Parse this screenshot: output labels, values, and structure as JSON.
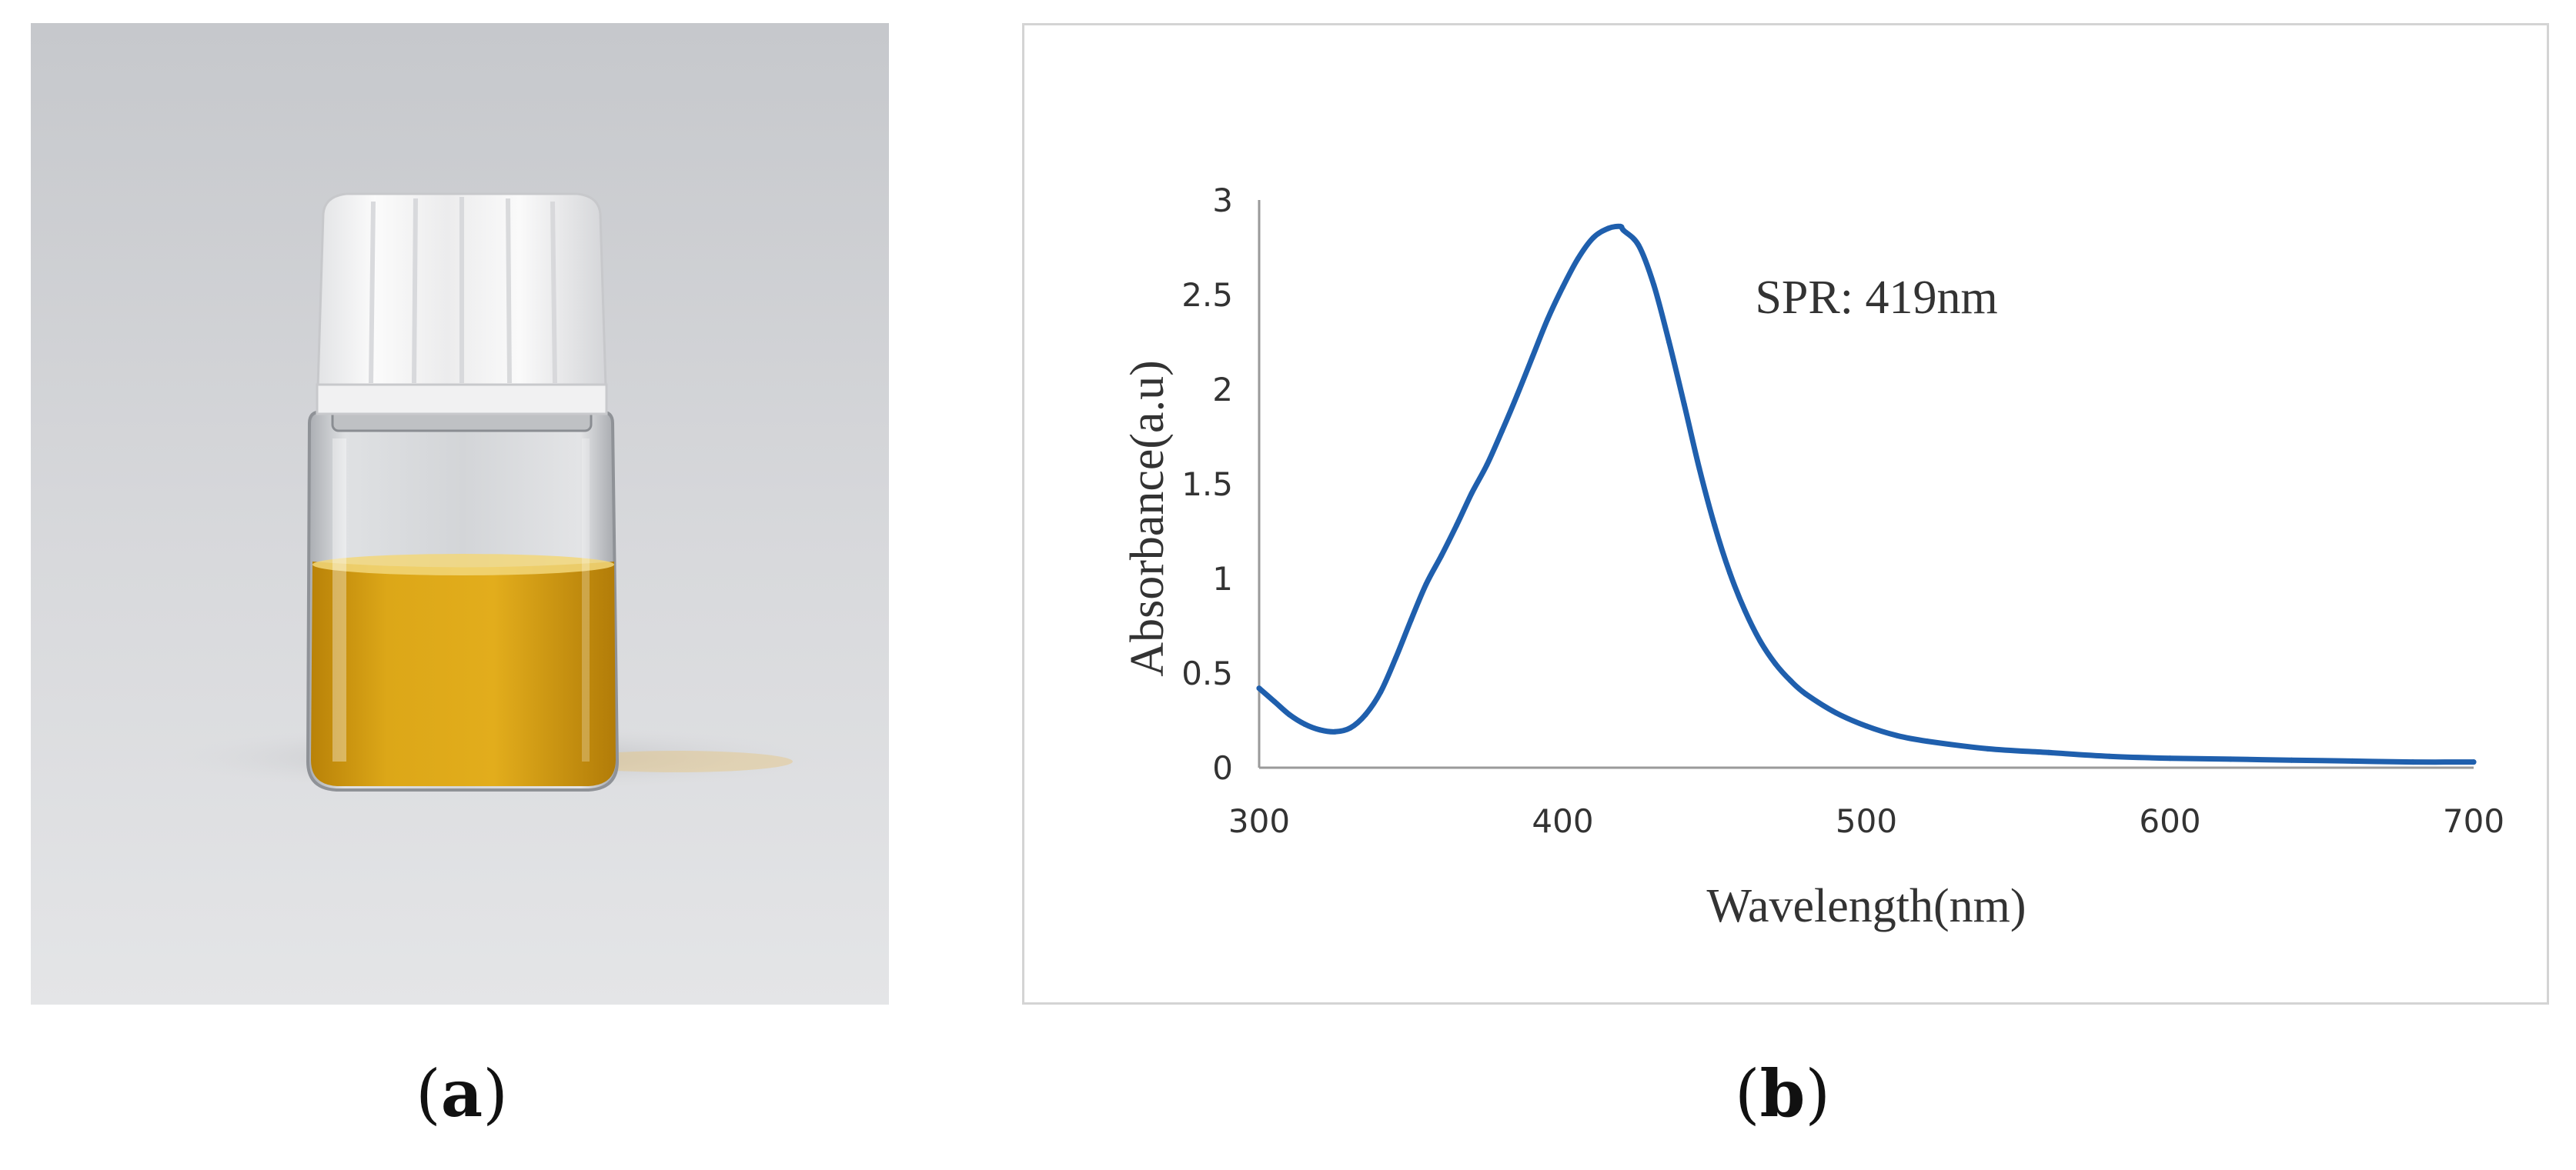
{
  "panels": {
    "a": {
      "label_open": "(",
      "label_letter": "a",
      "label_close": ")"
    },
    "b": {
      "label_open": "(",
      "label_letter": "b",
      "label_close": ")"
    }
  },
  "photo": {
    "subject": "glass-vial-with-yellow-solution",
    "liquid_color": "#d9a312",
    "cap_color": "#f4f4f4"
  },
  "chart_data": {
    "type": "line",
    "title": "",
    "xlabel": "Wavelength(nm)",
    "ylabel": "Absorbance(a.u)",
    "xlim": [
      300,
      700
    ],
    "ylim": [
      0,
      3
    ],
    "xticks": [
      300,
      400,
      500,
      600,
      700
    ],
    "xtick_labels": [
      "300",
      "400",
      "500",
      "600",
      "700"
    ],
    "yticks": [
      0,
      0.5,
      1,
      1.5,
      2,
      2.5,
      3
    ],
    "ytick_labels": [
      "0",
      "0.5",
      "1",
      "1.5",
      "2",
      "2.5",
      "3"
    ],
    "grid": false,
    "line_color": "#1f5fad",
    "annotation": {
      "text": "SPR: 419nm",
      "x": 419,
      "y": 2.85
    },
    "series": [
      {
        "name": "Absorbance",
        "x": [
          300,
          305,
          310,
          315,
          320,
          325,
          330,
          335,
          340,
          345,
          350,
          355,
          360,
          365,
          370,
          375,
          380,
          385,
          390,
          395,
          400,
          405,
          410,
          415,
          419,
          420,
          425,
          430,
          435,
          440,
          445,
          450,
          455,
          460,
          465,
          470,
          475,
          480,
          490,
          500,
          510,
          520,
          540,
          560,
          580,
          600,
          620,
          640,
          660,
          680,
          700
        ],
        "y": [
          0.42,
          0.35,
          0.28,
          0.23,
          0.2,
          0.19,
          0.21,
          0.28,
          0.4,
          0.58,
          0.78,
          0.97,
          1.12,
          1.28,
          1.45,
          1.6,
          1.78,
          1.97,
          2.17,
          2.37,
          2.54,
          2.69,
          2.8,
          2.85,
          2.86,
          2.84,
          2.76,
          2.55,
          2.25,
          1.92,
          1.58,
          1.28,
          1.03,
          0.83,
          0.67,
          0.55,
          0.46,
          0.39,
          0.29,
          0.22,
          0.17,
          0.14,
          0.1,
          0.08,
          0.06,
          0.05,
          0.045,
          0.04,
          0.035,
          0.03,
          0.03
        ]
      }
    ]
  }
}
